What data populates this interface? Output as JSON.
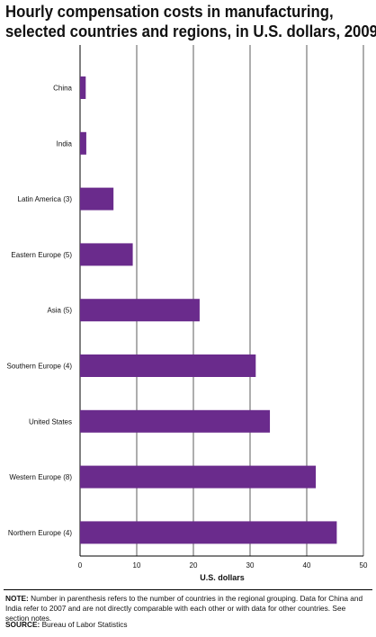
{
  "title_lines": [
    "Hourly compensation costs in manufacturing,",
    "selected countries and regions, in U.S. dollars, 2009"
  ],
  "note_label": "NOTE:",
  "note_text": "Number in parenthesis refers to the number of countries in the regional grouping. Data for China and India refer to 2007 and are not directly comparable with each other or with data for other countries. See section notes.",
  "source_label": "SOURCE:",
  "source_text": "Bureau of Labor Statistics",
  "colors": {
    "bar": "#6a2b8c",
    "grid": "#333333",
    "axis": "#000000"
  },
  "chart_data": {
    "type": "bar",
    "orientation": "horizontal",
    "categories": [
      "China",
      "India",
      "Latin America (3)",
      "Eastern Europe (5)",
      "Asia (5)",
      "Southern Europe (4)",
      "United States",
      "Western Europe (8)",
      "Northern Europe (4)"
    ],
    "values": [
      1.0,
      1.1,
      5.9,
      9.3,
      21.1,
      31.0,
      33.5,
      41.6,
      45.3
    ],
    "xlabel": "U.S. dollars",
    "xlim": [
      0,
      50
    ],
    "xticks": [
      "0",
      "10",
      "20",
      "30",
      "40",
      "50"
    ],
    "grid": true
  }
}
